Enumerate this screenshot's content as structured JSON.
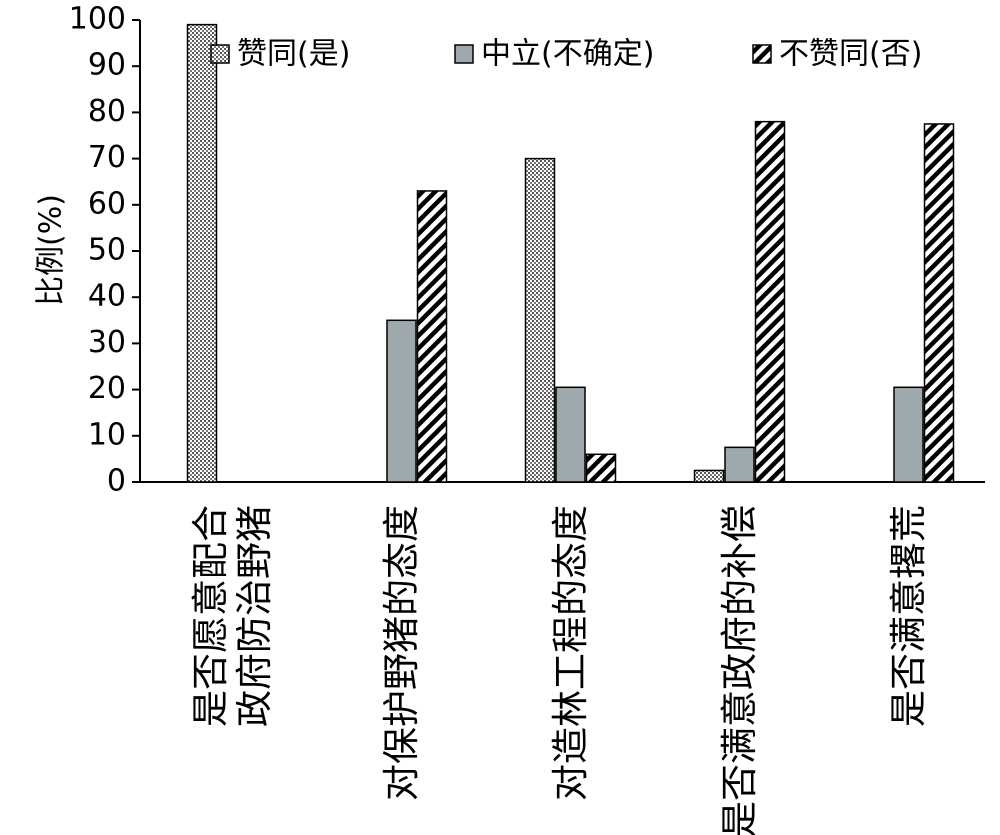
{
  "chart_data": {
    "type": "bar",
    "categories": [
      "是否愿意配合政府防治野猪",
      "对保护野猪的态度",
      "对造林工程的态度",
      "是否满意政府的补偿",
      "是否满意撂荒"
    ],
    "category_lines": [
      [
        "是否愿意配合",
        "政府防治野猪"
      ],
      [
        "对保护野猪的态度"
      ],
      [
        "对造林工程的态度"
      ],
      [
        "是否满意政府的补偿"
      ],
      [
        "是否满意撂荒"
      ]
    ],
    "series": [
      {
        "name": "赞同(是)",
        "pattern": "dots",
        "values": [
          99,
          0,
          70,
          2.5,
          0
        ]
      },
      {
        "name": "中立(不确定)",
        "pattern": "solid",
        "color": "#9ea9ad",
        "values": [
          0,
          35,
          20.5,
          7.5,
          20.5
        ]
      },
      {
        "name": "不赞同(否)",
        "pattern": "diagonal",
        "values": [
          0,
          63,
          6,
          78,
          77.5
        ]
      }
    ],
    "ylabel": "比例(%)",
    "ylim": [
      0,
      100
    ],
    "yticks": [
      "0",
      "10",
      "20",
      "30",
      "40",
      "50",
      "60",
      "70",
      "80",
      "90",
      "100"
    ],
    "grid": false,
    "legend_position": "top"
  }
}
